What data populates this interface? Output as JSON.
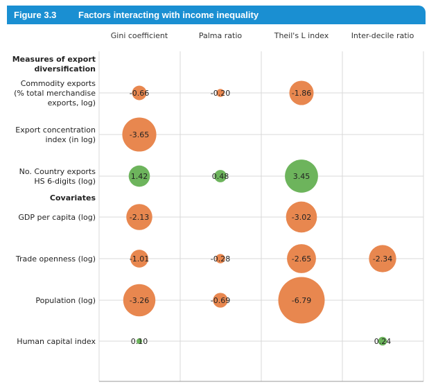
{
  "figure": {
    "number": "Figure 3.3",
    "title": "Factors interacting with income inequality"
  },
  "colors": {
    "negative": "#e8874f",
    "positive": "#6db45c",
    "header": "#1a8fd2",
    "grid": "#d9d9d9"
  },
  "chart_data": {
    "type": "scatter",
    "subtype": "bubble-matrix",
    "title": "Factors interacting with income inequality",
    "columns": [
      "Gini coefficient",
      "Palma ratio",
      "Theil's L index",
      "Inter-decile ratio"
    ],
    "rows": [
      {
        "label": [
          "Measures of export",
          "diversification"
        ],
        "heading": true
      },
      {
        "label": [
          "Commodity exports",
          "(% total merchandise",
          "exports, log)"
        ],
        "values": [
          -0.66,
          -0.2,
          -1.86,
          null
        ]
      },
      {
        "label": [
          "Export concentration",
          "index (in log)"
        ],
        "values": [
          -3.65,
          null,
          null,
          null
        ]
      },
      {
        "label": [
          "No. Country exports",
          "HS 6-digits (log)"
        ],
        "values": [
          1.42,
          0.48,
          3.45,
          null
        ]
      },
      {
        "label": [
          "Covariates"
        ],
        "heading": true
      },
      {
        "label": [
          "GDP per capita (log)"
        ],
        "values": [
          -2.13,
          null,
          -3.02,
          null
        ]
      },
      {
        "label": [
          "Trade openness (log)"
        ],
        "values": [
          -1.01,
          -0.28,
          -2.65,
          -2.34
        ]
      },
      {
        "label": [
          "Population (log)"
        ],
        "values": [
          -3.26,
          -0.69,
          -6.79,
          null
        ]
      },
      {
        "label": [
          "Human capital index"
        ],
        "values": [
          0.1,
          null,
          null,
          0.24
        ]
      }
    ],
    "value_labels": {
      "r1": [
        "-0.66",
        "-0.20",
        "-1.86",
        null
      ],
      "r2": [
        "-3.65",
        null,
        null,
        null
      ],
      "r3": [
        "1.42",
        "0.48",
        "3.45",
        null
      ],
      "r5": [
        "-2.13",
        null,
        "-3.02",
        null
      ],
      "r6": [
        "-1.01",
        "-0.28",
        "-2.65",
        "-2.34"
      ],
      "r7": [
        "-3.26",
        "-0.69",
        "-6.79",
        null
      ],
      "r8": [
        "0.10",
        null,
        null,
        "0.24"
      ]
    },
    "size_encoding": "absolute value",
    "grid": true,
    "legend": "none"
  }
}
